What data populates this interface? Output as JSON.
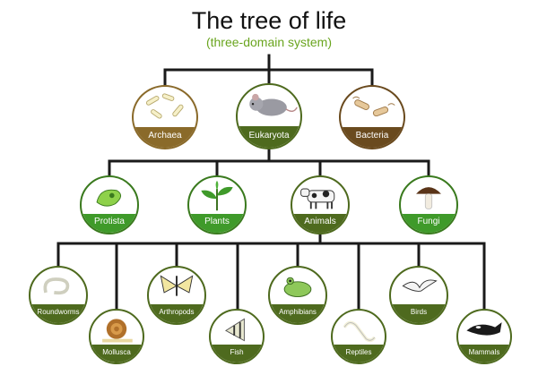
{
  "title": "The tree of life",
  "subtitle": "(three-domain system)",
  "colors": {
    "title": "#111111",
    "subtitle": "#6aa51f",
    "line": "#1a1a1a",
    "archaea_band": "#8a6a2a",
    "eukaryota_band": "#4e6a1e",
    "bacteria_band": "#6a4a1e",
    "level2_band": "#3f9a2a",
    "level3_band": "#4e6a1e",
    "border": "#2a2a2a"
  },
  "domains": [
    {
      "label": "Archaea",
      "icon": "archaea-icon"
    },
    {
      "label": "Eukaryota",
      "icon": "mouse-icon"
    },
    {
      "label": "Bacteria",
      "icon": "bacteria-icon"
    }
  ],
  "kingdoms": [
    {
      "label": "Protista",
      "icon": "protist-icon"
    },
    {
      "label": "Plants",
      "icon": "plant-sprout-icon"
    },
    {
      "label": "Animals",
      "icon": "cow-icon"
    },
    {
      "label": "Fungi",
      "icon": "mushroom-icon"
    }
  ],
  "animal_groups": [
    {
      "label": "Roundworms",
      "icon": "roundworm-icon"
    },
    {
      "label": "Mollusca",
      "icon": "snail-icon"
    },
    {
      "label": "Arthropods",
      "icon": "butterfly-icon"
    },
    {
      "label": "Fish",
      "icon": "angelfish-icon"
    },
    {
      "label": "Amphibians",
      "icon": "frog-icon"
    },
    {
      "label": "Reptiles",
      "icon": "snake-icon"
    },
    {
      "label": "Birds",
      "icon": "gull-icon"
    },
    {
      "label": "Mammals",
      "icon": "orca-icon"
    }
  ]
}
